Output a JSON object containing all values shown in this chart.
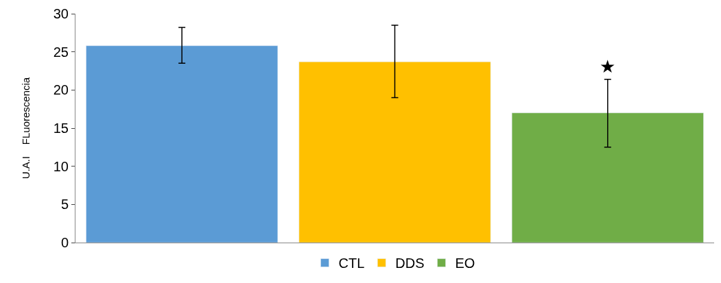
{
  "chart_data": {
    "type": "bar",
    "ylabel": "U.A.I    FLuorescencia",
    "categories": [
      null,
      null,
      null
    ],
    "series": [
      {
        "name": "CTL",
        "color": "#5b9bd5",
        "values": [
          25.8,
          null,
          null
        ],
        "errors": [
          [
            23.5,
            28.2
          ],
          null,
          null
        ]
      },
      {
        "name": "DDS",
        "color": "#ffc000",
        "values": [
          null,
          23.7,
          null
        ],
        "errors": [
          null,
          [
            19.0,
            28.5
          ],
          null
        ]
      },
      {
        "name": "EO",
        "color": "#70ad47",
        "values": [
          null,
          null,
          17.0
        ],
        "errors": [
          null,
          null,
          [
            12.5,
            21.4
          ]
        ]
      }
    ],
    "ylim": [
      0,
      30
    ],
    "yticks": [
      0,
      5,
      10,
      15,
      20,
      25,
      30
    ],
    "annotations": [
      "★"
    ],
    "legend": "bottom"
  }
}
